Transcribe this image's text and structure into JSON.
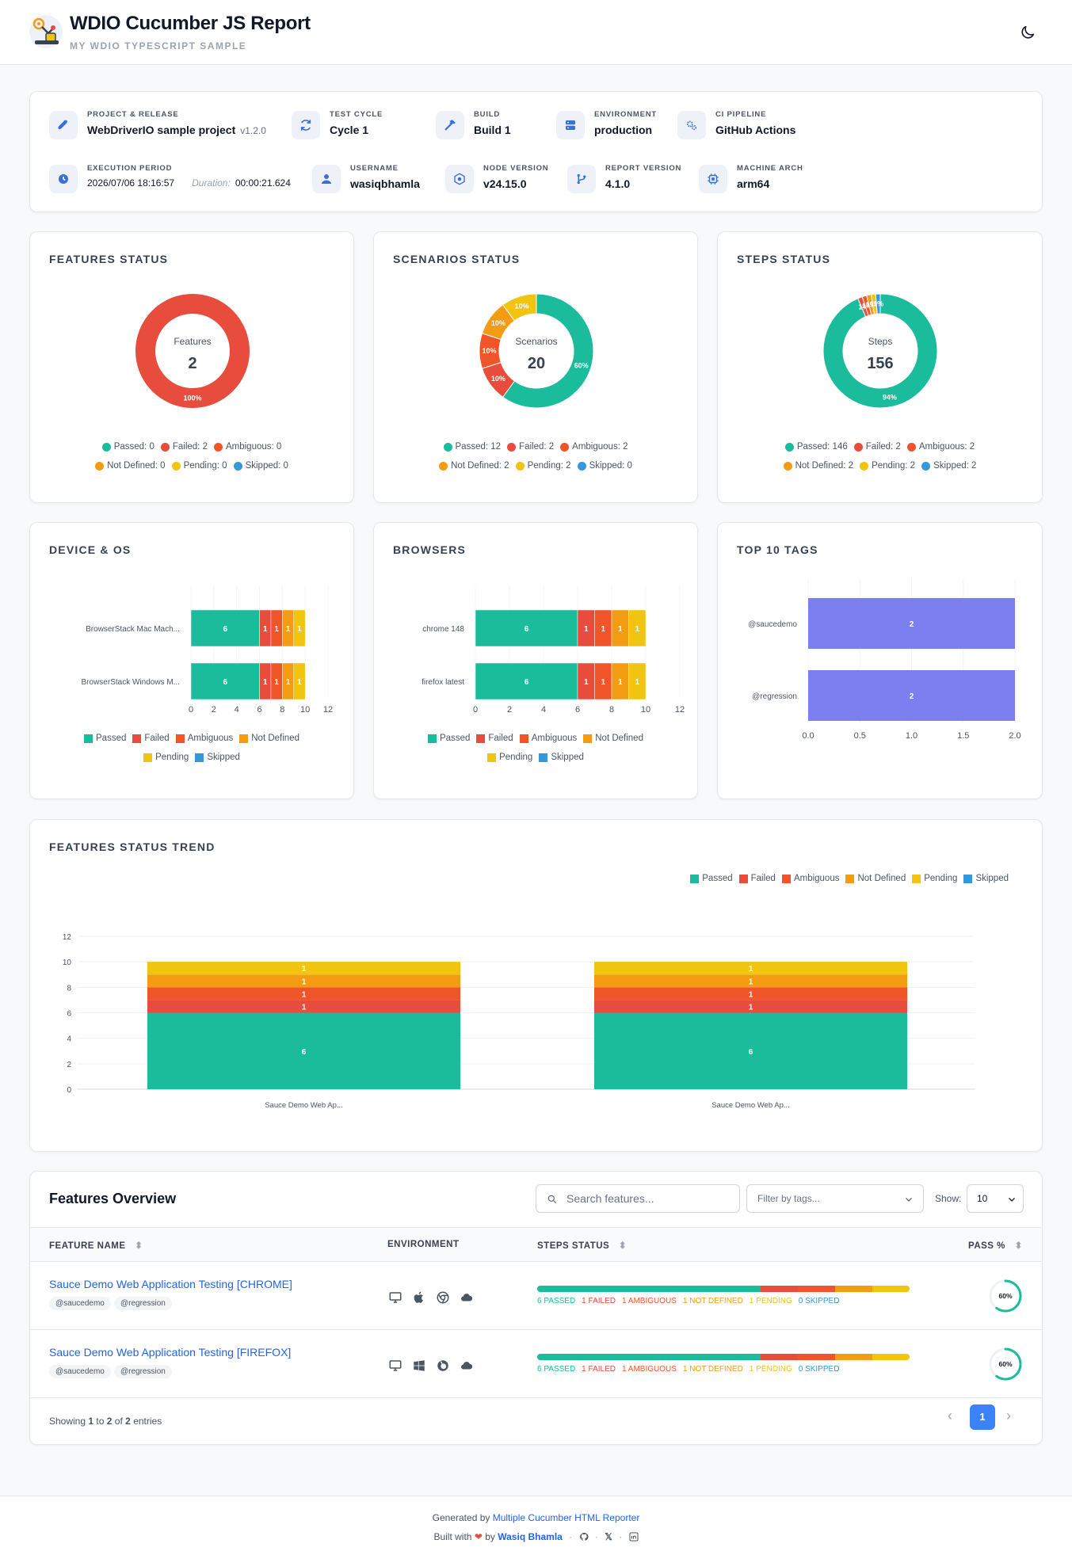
{
  "header": {
    "title": "WDIO Cucumber JS Report",
    "subtitle": "MY WDIO TYPESCRIPT SAMPLE",
    "theme_icon": "moon-icon"
  },
  "meta": {
    "project": {
      "label": "PROJECT & RELEASE",
      "value": "WebDriverIO sample project",
      "version": "v1.2.0",
      "icon": "rocket-icon"
    },
    "cycle": {
      "label": "TEST CYCLE",
      "value": "Cycle 1",
      "icon": "refresh-icon"
    },
    "build": {
      "label": "BUILD",
      "value": "Build 1",
      "icon": "hammer-icon"
    },
    "environment": {
      "label": "ENVIRONMENT",
      "value": "production",
      "icon": "server-icon"
    },
    "ci": {
      "label": "CI PIPELINE",
      "value": "GitHub Actions",
      "icon": "gears-icon"
    },
    "period": {
      "label": "EXECUTION PERIOD",
      "value": "2026/07/06 18:16:57",
      "duration_label": "Duration:",
      "duration": "00:00:21.624",
      "icon": "clock-icon"
    },
    "username": {
      "label": "USERNAME",
      "value": "wasiqbhamla",
      "icon": "user-icon"
    },
    "node": {
      "label": "NODE VERSION",
      "value": "v24.15.0",
      "icon": "node-icon"
    },
    "report": {
      "label": "REPORT VERSION",
      "value": "4.1.0",
      "icon": "branch-icon"
    },
    "arch": {
      "label": "MACHINE ARCH",
      "value": "arm64",
      "icon": "cpu-icon"
    }
  },
  "colors": {
    "passed": "#1abc9c",
    "failed": "#e74c3c",
    "ambiguous": "#f0552a",
    "not_defined": "#f39c12",
    "pending": "#f1c40f",
    "skipped": "#3498db",
    "tags": "#7b7ff0"
  },
  "features_status": {
    "title": "FEATURES STATUS",
    "center_label": "Features",
    "total": "2",
    "legend": [
      {
        "label": "Passed: 0",
        "key": "passed"
      },
      {
        "label": "Failed: 2",
        "key": "failed"
      },
      {
        "label": "Ambiguous: 0",
        "key": "ambiguous"
      },
      {
        "label": "Not Defined: 0",
        "key": "not_defined"
      },
      {
        "label": "Pending: 0",
        "key": "pending"
      },
      {
        "label": "Skipped: 0",
        "key": "skipped"
      }
    ]
  },
  "scenarios_status": {
    "title": "SCENARIOS STATUS",
    "center_label": "Scenarios",
    "total": "20",
    "legend": [
      {
        "label": "Passed: 12",
        "key": "passed"
      },
      {
        "label": "Failed: 2",
        "key": "failed"
      },
      {
        "label": "Ambiguous: 2",
        "key": "ambiguous"
      },
      {
        "label": "Not Defined: 2",
        "key": "not_defined"
      },
      {
        "label": "Pending: 2",
        "key": "pending"
      },
      {
        "label": "Skipped: 0",
        "key": "skipped"
      }
    ]
  },
  "steps_status": {
    "title": "STEPS STATUS",
    "center_label": "Steps",
    "total": "156",
    "legend": [
      {
        "label": "Passed: 146",
        "key": "passed"
      },
      {
        "label": "Failed: 2",
        "key": "failed"
      },
      {
        "label": "Ambiguous: 2",
        "key": "ambiguous"
      },
      {
        "label": "Not Defined: 2",
        "key": "not_defined"
      },
      {
        "label": "Pending: 2",
        "key": "pending"
      },
      {
        "label": "Skipped: 2",
        "key": "skipped"
      }
    ]
  },
  "device_os": {
    "title": "DEVICE & OS",
    "legend": [
      "Passed",
      "Failed",
      "Ambiguous",
      "Not Defined",
      "Pending",
      "Skipped"
    ]
  },
  "browsers": {
    "title": "BROWSERS",
    "legend": [
      "Passed",
      "Failed",
      "Ambiguous",
      "Not Defined",
      "Pending",
      "Skipped"
    ]
  },
  "top_tags": {
    "title": "TOP 10 TAGS"
  },
  "trend": {
    "title": "FEATURES STATUS TREND",
    "legend": [
      "Passed",
      "Failed",
      "Ambiguous",
      "Not Defined",
      "Pending",
      "Skipped"
    ]
  },
  "chart_data": [
    {
      "type": "pie",
      "title": "FEATURES STATUS",
      "categories": [
        "Passed",
        "Failed",
        "Ambiguous",
        "Not Defined",
        "Pending",
        "Skipped"
      ],
      "values": [
        0,
        2,
        0,
        0,
        0,
        0
      ],
      "data_labels": [
        "",
        "100%",
        "",
        "",
        "",
        ""
      ]
    },
    {
      "type": "pie",
      "title": "SCENARIOS STATUS",
      "categories": [
        "Passed",
        "Failed",
        "Ambiguous",
        "Not Defined",
        "Pending",
        "Skipped"
      ],
      "values": [
        12,
        2,
        2,
        2,
        2,
        0
      ],
      "data_labels": [
        "60%",
        "10%",
        "10%",
        "10%",
        "10%",
        ""
      ]
    },
    {
      "type": "pie",
      "title": "STEPS STATUS",
      "categories": [
        "Passed",
        "Failed",
        "Ambiguous",
        "Not Defined",
        "Pending",
        "Skipped"
      ],
      "values": [
        146,
        2,
        2,
        2,
        2,
        2
      ],
      "data_labels": [
        "94%",
        "1%",
        "1%",
        "1%",
        "1%",
        "1%"
      ]
    },
    {
      "type": "bar",
      "title": "DEVICE & OS",
      "orientation": "horizontal",
      "stacked": true,
      "categories": [
        "BrowserStack Mac Mach...",
        "BrowserStack Windows M..."
      ],
      "xlim": [
        0,
        12
      ],
      "xticks": [
        0,
        2,
        4,
        6,
        8,
        10,
        12
      ],
      "series": [
        {
          "name": "Passed",
          "values": [
            6,
            6
          ]
        },
        {
          "name": "Failed",
          "values": [
            1,
            1
          ]
        },
        {
          "name": "Ambiguous",
          "values": [
            1,
            1
          ]
        },
        {
          "name": "Not Defined",
          "values": [
            1,
            1
          ]
        },
        {
          "name": "Pending",
          "values": [
            1,
            1
          ]
        },
        {
          "name": "Skipped",
          "values": [
            0,
            0
          ]
        }
      ]
    },
    {
      "type": "bar",
      "title": "BROWSERS",
      "orientation": "horizontal",
      "stacked": true,
      "categories": [
        "chrome 148",
        "firefox latest"
      ],
      "xlim": [
        0,
        12
      ],
      "xticks": [
        0,
        2,
        4,
        6,
        8,
        10,
        12
      ],
      "series": [
        {
          "name": "Passed",
          "values": [
            6,
            6
          ]
        },
        {
          "name": "Failed",
          "values": [
            1,
            1
          ]
        },
        {
          "name": "Ambiguous",
          "values": [
            1,
            1
          ]
        },
        {
          "name": "Not Defined",
          "values": [
            1,
            1
          ]
        },
        {
          "name": "Pending",
          "values": [
            1,
            1
          ]
        },
        {
          "name": "Skipped",
          "values": [
            0,
            0
          ]
        }
      ]
    },
    {
      "type": "bar",
      "title": "TOP 10 TAGS",
      "orientation": "horizontal",
      "categories": [
        "@saucedemo",
        "@regression"
      ],
      "values": [
        2,
        2
      ],
      "xlim": [
        0,
        2
      ],
      "xticks": [
        "0.0",
        "0.5",
        "1.0",
        "1.5",
        "2.0"
      ]
    },
    {
      "type": "bar",
      "title": "FEATURES STATUS TREND",
      "stacked": true,
      "categories": [
        "Sauce Demo Web Ap...",
        "Sauce Demo Web Ap..."
      ],
      "ylim": [
        0,
        12
      ],
      "yticks": [
        0,
        2,
        4,
        6,
        8,
        10,
        12
      ],
      "series": [
        {
          "name": "Passed",
          "values": [
            6,
            6
          ]
        },
        {
          "name": "Failed",
          "values": [
            1,
            1
          ]
        },
        {
          "name": "Ambiguous",
          "values": [
            1,
            1
          ]
        },
        {
          "name": "Not Defined",
          "values": [
            1,
            1
          ]
        },
        {
          "name": "Pending",
          "values": [
            1,
            1
          ]
        },
        {
          "name": "Skipped",
          "values": [
            0,
            0
          ]
        }
      ]
    }
  ],
  "features_overview": {
    "title": "Features Overview",
    "search_placeholder": "Search features...",
    "filter_placeholder": "Filter by tags...",
    "show_label": "Show:",
    "show_value": "10",
    "columns": {
      "name": "FEATURE NAME",
      "env": "ENVIRONMENT",
      "steps": "STEPS STATUS",
      "pass": "PASS %"
    },
    "rows": [
      {
        "name": "Sauce Demo Web Application Testing [CHROME]",
        "tags": [
          "@saucedemo",
          "@regression"
        ],
        "env_icons": [
          "desktop-icon",
          "apple-icon",
          "chrome-icon",
          "cloud-icon"
        ],
        "steps": [
          6,
          1,
          1,
          1,
          1,
          0
        ],
        "labels": [
          "6 PASSED",
          "1 FAILED",
          "1 AMBIGUOUS",
          "1 NOT DEFINED",
          "1 PENDING",
          "0 SKIPPED"
        ],
        "pass": "60%",
        "pass_value": 0.6
      },
      {
        "name": "Sauce Demo Web Application Testing [FIREFOX]",
        "tags": [
          "@saucedemo",
          "@regression"
        ],
        "env_icons": [
          "desktop-icon",
          "windows-icon",
          "firefox-icon",
          "cloud-icon"
        ],
        "steps": [
          6,
          1,
          1,
          1,
          1,
          0
        ],
        "labels": [
          "6 PASSED",
          "1 FAILED",
          "1 AMBIGUOUS",
          "1 NOT DEFINED",
          "1 PENDING",
          "0 SKIPPED"
        ],
        "pass": "60%",
        "pass_value": 0.6
      }
    ],
    "showing_prefix": "Showing",
    "showing_from": "1",
    "showing_to_word": "to",
    "showing_to": "2",
    "showing_of_word": "of",
    "showing_total": "2",
    "showing_suffix": "entries",
    "current_page": "1"
  },
  "footer": {
    "generated_by": "Generated by",
    "generator_link": "Multiple Cucumber HTML Reporter",
    "built_with": "Built with",
    "by": "by",
    "author": "Wasiq Bhamla"
  }
}
